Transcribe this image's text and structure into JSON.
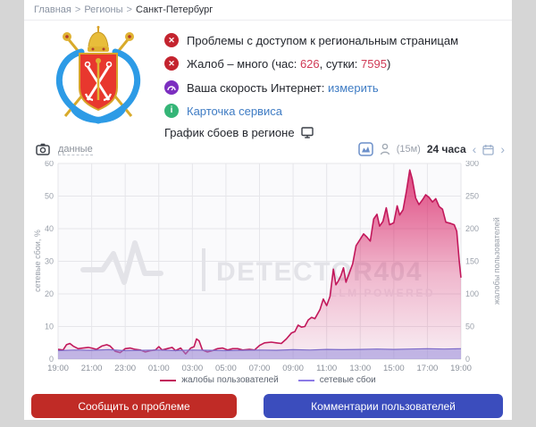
{
  "breadcrumb": {
    "items": [
      "Главная",
      "Регионы",
      "Санкт-Петербург"
    ],
    "separator": ">"
  },
  "status": {
    "problem_line": "Проблемы с доступом к региональным страницам",
    "complaints_prefix": "Жалоб – много (час: ",
    "complaints_hour": "626",
    "complaints_mid": ", сутки: ",
    "complaints_day": "7595",
    "complaints_suffix": ")",
    "speed_label": "Ваша скорость Интернет: ",
    "speed_link": "измерить",
    "service_card": "Карточка сервиса",
    "graph_title": "График сбоев в регионе"
  },
  "chart_header": {
    "data_link": "данные",
    "interval": "(15м)",
    "range": "24 часа",
    "prev": "‹",
    "next": "›"
  },
  "watermark": {
    "brand": "DETECTOR404",
    "tagline": "LLM POWERED"
  },
  "icons": {
    "red_x": "✕",
    "info": "i"
  },
  "chart_data": {
    "type": "area",
    "x_ticks": [
      "19:00",
      "21:00",
      "23:00",
      "01:00",
      "03:00",
      "05:00",
      "07:00",
      "09:00",
      "11:00",
      "13:00",
      "15:00",
      "17:00",
      "19:00"
    ],
    "x_range_hours": [
      0,
      24
    ],
    "left_axis": {
      "label": "сетевые сбои, %",
      "ticks": [
        0,
        10,
        20,
        30,
        40,
        50,
        60
      ],
      "range": [
        0,
        60
      ]
    },
    "right_axis": {
      "label": "жалобы пользователей",
      "ticks": [
        0,
        50,
        100,
        150,
        200,
        250,
        300
      ],
      "range": [
        0,
        300
      ]
    },
    "grid": true,
    "series": [
      {
        "name": "жалобы пользователей",
        "axis": "right",
        "color": "#c2185b",
        "fill_top": "#d81b60",
        "points": [
          [
            0,
            15
          ],
          [
            0.3,
            14
          ],
          [
            0.5,
            22
          ],
          [
            0.7,
            24
          ],
          [
            0.9,
            20
          ],
          [
            1.2,
            16
          ],
          [
            1.5,
            17
          ],
          [
            1.8,
            18
          ],
          [
            2,
            17
          ],
          [
            2.3,
            15
          ],
          [
            2.6,
            20
          ],
          [
            2.9,
            22
          ],
          [
            3.1,
            20
          ],
          [
            3.4,
            12
          ],
          [
            3.7,
            10
          ],
          [
            4,
            16
          ],
          [
            4.3,
            17
          ],
          [
            4.6,
            15
          ],
          [
            4.9,
            14
          ],
          [
            5.2,
            11
          ],
          [
            5.5,
            13
          ],
          [
            5.8,
            14
          ],
          [
            6,
            19
          ],
          [
            6.2,
            14
          ],
          [
            6.5,
            16
          ],
          [
            6.8,
            18
          ],
          [
            7,
            13
          ],
          [
            7.3,
            17
          ],
          [
            7.6,
            8
          ],
          [
            7.9,
            17
          ],
          [
            8.1,
            19
          ],
          [
            8.25,
            31
          ],
          [
            8.4,
            28
          ],
          [
            8.6,
            14
          ],
          [
            8.9,
            11
          ],
          [
            9.2,
            13
          ],
          [
            9.5,
            16
          ],
          [
            9.8,
            17
          ],
          [
            10.1,
            14
          ],
          [
            10.4,
            16
          ],
          [
            10.7,
            16
          ],
          [
            11,
            14
          ],
          [
            11.4,
            15
          ],
          [
            11.7,
            14
          ],
          [
            12,
            21
          ],
          [
            12.3,
            25
          ],
          [
            12.7,
            26
          ],
          [
            13,
            25
          ],
          [
            13.3,
            24
          ],
          [
            13.6,
            31
          ],
          [
            13.9,
            40
          ],
          [
            14.1,
            42
          ],
          [
            14.3,
            52
          ],
          [
            14.5,
            49
          ],
          [
            14.7,
            50
          ],
          [
            14.9,
            60
          ],
          [
            15.1,
            64
          ],
          [
            15.3,
            62
          ],
          [
            15.6,
            76
          ],
          [
            15.8,
            92
          ],
          [
            16,
            82
          ],
          [
            16.2,
            96
          ],
          [
            16.4,
            138
          ],
          [
            16.55,
            114
          ],
          [
            16.7,
            120
          ],
          [
            16.85,
            128
          ],
          [
            17,
            140
          ],
          [
            17.15,
            118
          ],
          [
            17.35,
            132
          ],
          [
            17.55,
            146
          ],
          [
            17.75,
            174
          ],
          [
            18,
            184
          ],
          [
            18.2,
            192
          ],
          [
            18.4,
            187
          ],
          [
            18.6,
            181
          ],
          [
            18.8,
            215
          ],
          [
            19,
            222
          ],
          [
            19.15,
            204
          ],
          [
            19.35,
            211
          ],
          [
            19.55,
            232
          ],
          [
            19.75,
            206
          ],
          [
            20,
            209
          ],
          [
            20.2,
            235
          ],
          [
            20.35,
            221
          ],
          [
            20.55,
            229
          ],
          [
            20.75,
            257
          ],
          [
            20.95,
            290
          ],
          [
            21.1,
            276
          ],
          [
            21.3,
            247
          ],
          [
            21.5,
            237
          ],
          [
            21.7,
            244
          ],
          [
            21.9,
            252
          ],
          [
            22.1,
            248
          ],
          [
            22.3,
            241
          ],
          [
            22.5,
            246
          ],
          [
            22.7,
            234
          ],
          [
            22.9,
            230
          ],
          [
            23.1,
            210
          ],
          [
            23.4,
            208
          ],
          [
            23.6,
            206
          ],
          [
            23.75,
            196
          ],
          [
            23.9,
            150
          ],
          [
            24,
            125
          ]
        ]
      },
      {
        "name": "сетевые сбои",
        "axis": "left",
        "color": "#7e6cc9",
        "fill": "#9486d8",
        "points": [
          [
            0,
            2.6
          ],
          [
            1,
            2.8
          ],
          [
            2,
            2.7
          ],
          [
            3,
            2.9
          ],
          [
            4,
            2.6
          ],
          [
            5,
            2.7
          ],
          [
            6,
            2.8
          ],
          [
            7,
            2.6
          ],
          [
            8,
            2.8
          ],
          [
            9,
            2.7
          ],
          [
            10,
            2.6
          ],
          [
            11,
            2.7
          ],
          [
            12,
            2.8
          ],
          [
            13,
            2.7
          ],
          [
            14,
            2.9
          ],
          [
            15,
            2.8
          ],
          [
            16,
            3.0
          ],
          [
            17,
            2.9
          ],
          [
            18,
            3.0
          ],
          [
            19,
            3.1
          ],
          [
            20,
            3.0
          ],
          [
            21,
            3.1
          ],
          [
            22,
            3.2
          ],
          [
            23,
            3.1
          ],
          [
            24,
            3.2
          ]
        ]
      }
    ]
  },
  "legend": [
    {
      "label": "жалобы пользователей",
      "color": "#c2185b"
    },
    {
      "label": "сетевые сбои",
      "color": "#8c7ae6"
    }
  ],
  "buttons": {
    "report": "Сообщить о проблеме",
    "comments": "Комментарии пользователей"
  },
  "colors": {
    "page_bg": "#d6d6d6",
    "card_bg": "#ffffff",
    "alert_badge": "#c4242f",
    "speed_badge": "#7c2fc0",
    "info_badge": "#35b577",
    "accent_number": "#d03a56",
    "link_blue": "#3f7cc4",
    "report_button": "#c02b26",
    "comments_button": "#3b4dbd",
    "complaints_line": "#c2185b",
    "network_line": "#7e6cc9",
    "grid": "#e6e6ea",
    "watermark": "#e3e3e8"
  }
}
